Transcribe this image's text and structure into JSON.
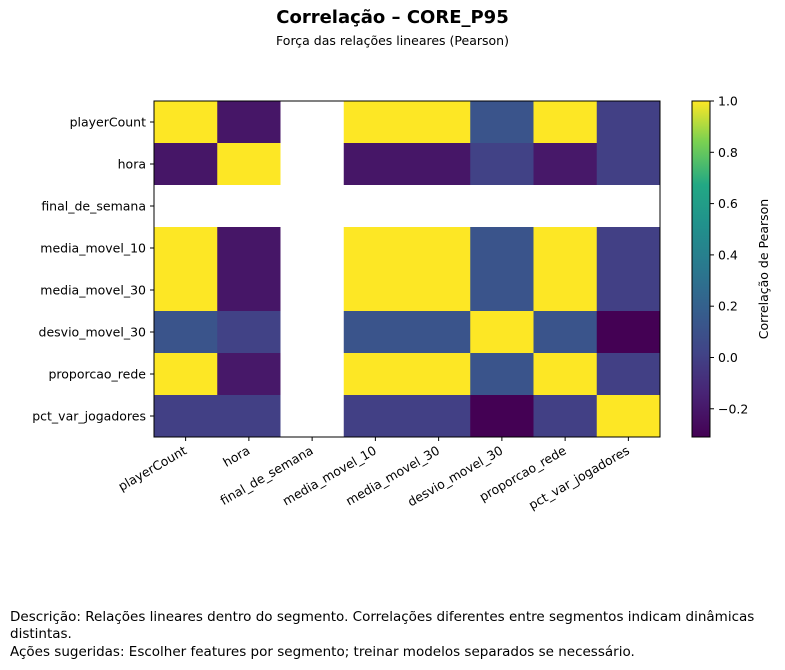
{
  "title": "Correlação – CORE_P95",
  "subtitle": "Força das relações lineares (Pearson)",
  "description": "Descrição: Relações lineares dentro do segmento. Correlações diferentes entre segmentos indicam dinâmicas distintas.",
  "actions": "Ações sugeridas: Escolher features por segmento; treinar modelos separados se necessário.",
  "chart_data": {
    "type": "heatmap",
    "colormap": "viridis",
    "variables": [
      "playerCount",
      "hora",
      "final_de_semana",
      "media_movel_10",
      "media_movel_30",
      "desvio_movel_30",
      "proporcao_rede",
      "pct_var_jogadores"
    ],
    "matrix": [
      [
        1.0,
        -0.21,
        null,
        1.0,
        1.0,
        0.12,
        1.0,
        0.0
      ],
      [
        -0.21,
        1.0,
        null,
        -0.21,
        -0.21,
        0.01,
        -0.2,
        0.0
      ],
      [
        null,
        null,
        null,
        null,
        null,
        null,
        null,
        null
      ],
      [
        1.0,
        -0.21,
        null,
        1.0,
        1.0,
        0.12,
        1.0,
        0.0
      ],
      [
        1.0,
        -0.21,
        null,
        1.0,
        1.0,
        0.12,
        1.0,
        0.0
      ],
      [
        0.12,
        0.01,
        null,
        0.12,
        0.12,
        1.0,
        0.12,
        -0.31
      ],
      [
        1.0,
        -0.2,
        null,
        1.0,
        1.0,
        0.12,
        1.0,
        0.0
      ],
      [
        0.0,
        0.0,
        null,
        0.0,
        0.0,
        -0.31,
        0.0,
        1.0
      ]
    ],
    "colorbar": {
      "label": "Correlação de Pearson",
      "range": [
        -0.31,
        1.0
      ],
      "ticks": [
        "−0.2",
        "0.0",
        "0.2",
        "0.4",
        "0.6",
        "0.8",
        "1.0"
      ],
      "tick_values": [
        -0.2,
        0.0,
        0.2,
        0.4,
        0.6,
        0.8,
        1.0
      ]
    }
  }
}
